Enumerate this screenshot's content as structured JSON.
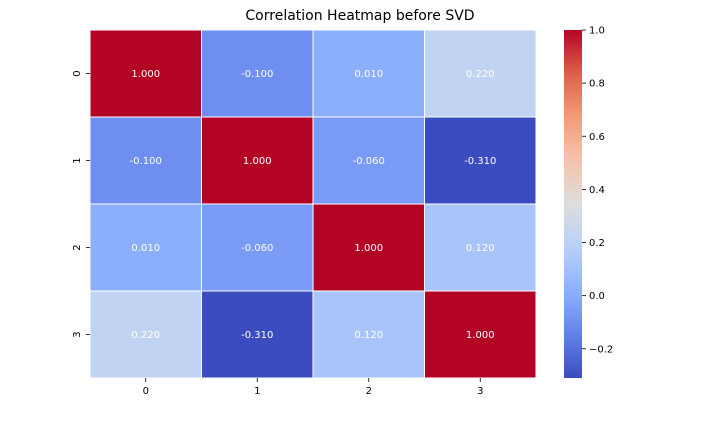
{
  "chart_data": {
    "type": "heatmap",
    "title": "Correlation Heatmap before SVD",
    "xlabel": "",
    "ylabel": "",
    "x_categories": [
      "0",
      "1",
      "2",
      "3"
    ],
    "y_categories": [
      "0",
      "1",
      "2",
      "3"
    ],
    "values": [
      [
        1.0,
        -0.1,
        0.01,
        0.22
      ],
      [
        -0.1,
        1.0,
        -0.06,
        -0.31
      ],
      [
        0.01,
        -0.06,
        1.0,
        0.12
      ],
      [
        0.22,
        -0.31,
        0.12,
        1.0
      ]
    ],
    "annotations": [
      [
        "1.000",
        "-0.100",
        "0.010",
        "0.220"
      ],
      [
        "-0.100",
        "1.000",
        "-0.060",
        "-0.310"
      ],
      [
        "0.010",
        "-0.060",
        "1.000",
        "0.120"
      ],
      [
        "0.220",
        "-0.310",
        "0.120",
        "1.000"
      ]
    ],
    "colormap": "coolwarm",
    "colorbar": {
      "range": [
        -0.31,
        1.0
      ],
      "ticks": [
        -0.2,
        0.0,
        0.2,
        0.4,
        0.6,
        0.8,
        1.0
      ],
      "tick_labels": [
        "−0.2",
        "0.0",
        "0.2",
        "0.4",
        "0.6",
        "0.8",
        "1.0"
      ]
    },
    "cell_border_color": "#ffffff",
    "legend": "colorbar-right"
  }
}
